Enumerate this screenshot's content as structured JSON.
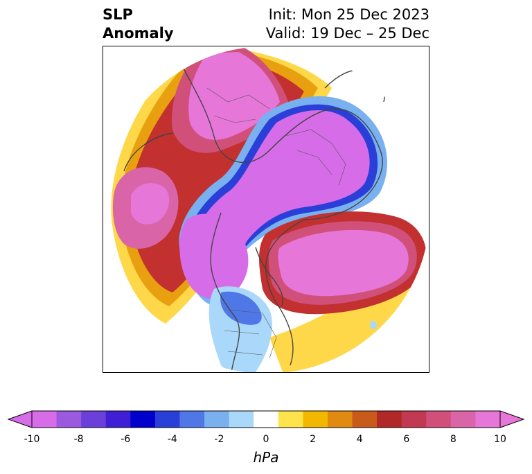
{
  "title": {
    "line1": "SLP",
    "line2": "Anomaly",
    "init": "Init: Mon 25 Dec 2023",
    "valid": "Valid: 19 Dec – 25 Dec"
  },
  "colorbar": {
    "units": "hPa",
    "min": -10,
    "max": 10,
    "ticks": [
      "-10",
      "-8",
      "-6",
      "-4",
      "-2",
      "0",
      "2",
      "4",
      "6",
      "8",
      "10"
    ],
    "colors": [
      "#d66ce8",
      "#9b59e0",
      "#6b3fd9",
      "#3f1fd6",
      "#0000cc",
      "#2a3fd8",
      "#4f78e6",
      "#78b0f0",
      "#aad8fa",
      "#ffffff",
      "#ffe34a",
      "#f2b800",
      "#e08a10",
      "#c85a1a",
      "#b02828",
      "#c23a52",
      "#d0507a",
      "#d965a8",
      "#e676d8"
    ]
  }
}
